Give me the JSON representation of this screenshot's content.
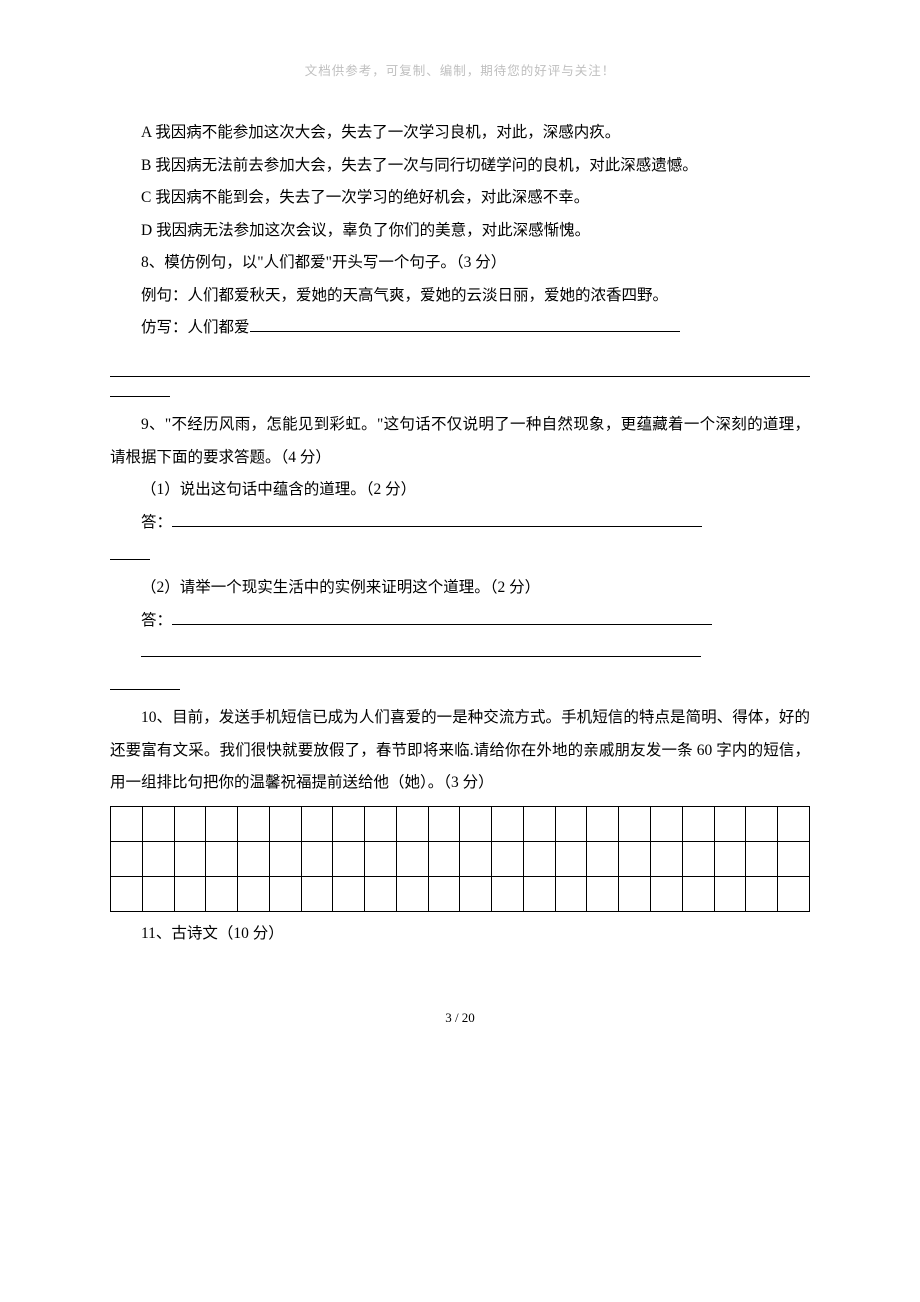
{
  "header": {
    "text": "文档供参考，可复制、编制，期待您的好评与关注！"
  },
  "options": {
    "a": "A 我因病不能参加这次大会，失去了一次学习良机，对此，深感内疚。",
    "b": "B 我因病无法前去参加大会，失去了一次与同行切磋学问的良机，对此深感遗憾。",
    "c": "C 我因病不能到会，失去了一次学习的绝好机会，对此深感不幸。",
    "d": "D 我因病无法参加这次会议，辜负了你们的美意，对此深感惭愧。"
  },
  "q8": {
    "title": "8、模仿例句，以\"人们都爱\"开头写一个句子。（3 分）",
    "example": "例句：人们都爱秋天，爱她的天高气爽，爱她的云淡日丽，爱她的浓香四野。",
    "prompt": "仿写：人们都爱"
  },
  "q9": {
    "title": "9、\"不经历风雨，怎能见到彩虹。\"这句话不仅说明了一种自然现象，更蕴藏着一个深刻的道理，请根据下面的要求答题。（4 分）",
    "p1": "（1）说出这句话中蕴含的道理。（2 分）",
    "ans_label": "答：",
    "p2": "（2）请举一个现实生活中的实例来证明这个道理。（2 分）"
  },
  "q10": {
    "title": "10、目前，发送手机短信已成为人们喜爱的一是种交流方式。手机短信的特点是简明、得体，好的还要富有文采。我们很快就要放假了，春节即将来临.请给你在外地的亲戚朋友发一条 60 字内的短信，用一组排比句把你的温馨祝福提前送给他（她）。（3 分）",
    "cols": 22,
    "rows": 3
  },
  "q11": {
    "title": "11、古诗文（10 分）"
  },
  "footer": {
    "text": "3 / 20"
  }
}
